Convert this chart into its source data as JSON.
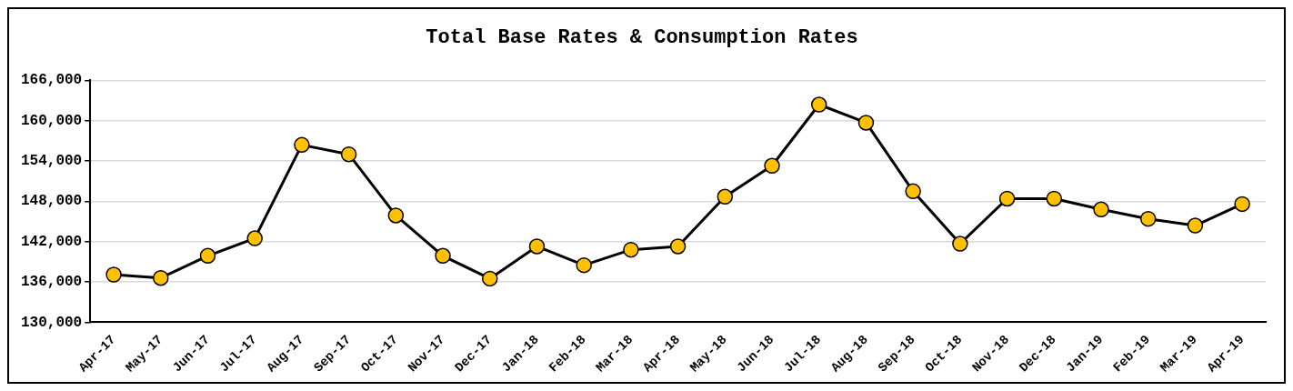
{
  "chart_data": {
    "type": "line",
    "title": "Total Base Rates & Consumption Rates",
    "categories": [
      "Apr-17",
      "May-17",
      "Jun-17",
      "Jul-17",
      "Aug-17",
      "Sep-17",
      "Oct-17",
      "Nov-17",
      "Dec-17",
      "Jan-18",
      "Feb-18",
      "Mar-18",
      "Apr-18",
      "May-18",
      "Jun-18",
      "Jul-18",
      "Aug-18",
      "Sep-18",
      "Oct-18",
      "Nov-18",
      "Dec-18",
      "Jan-19",
      "Feb-19",
      "Mar-19",
      "Apr-19"
    ],
    "series": [
      {
        "color": "#000000",
        "colors": [
          "#ffc000",
          "#ffc000",
          "#ffc000",
          "#ffc000",
          "#ffc000",
          "#ffc000",
          "#ffc000",
          "#ffc000",
          "#ffc000",
          "#ffc000",
          "#ffc000",
          "#ffc000",
          "#ffc000",
          "#ffc000",
          "#ffc000",
          "#ffc000",
          "#ffc000",
          "#ffc000",
          "#ffc000",
          "#ffc000",
          "#ffc000",
          "#ffc000",
          "#ffc000",
          "#ffc000",
          "#ffc000"
        ],
        "values": [
          137100,
          136600,
          139900,
          142500,
          156400,
          155000,
          145900,
          139900,
          136500,
          141300,
          138500,
          140800,
          141300,
          148700,
          153300,
          162400,
          159700,
          149500,
          141700,
          148400,
          148400,
          146800,
          145400,
          144400,
          147600
        ]
      }
    ],
    "ylim": [
      130000,
      166000
    ],
    "yticks": [
      {
        "value": 130000,
        "label": "130,000"
      },
      {
        "value": 136000,
        "label": "136,000"
      },
      {
        "value": 142000,
        "label": "142,000"
      },
      {
        "value": 148000,
        "label": "148,000"
      },
      {
        "value": 154000,
        "label": "154,000"
      },
      {
        "value": 160000,
        "label": "160,000"
      },
      {
        "value": 166000,
        "label": "166,000"
      }
    ],
    "grid": "y",
    "legend": false,
    "marker": "circle",
    "line_style": "solid"
  }
}
